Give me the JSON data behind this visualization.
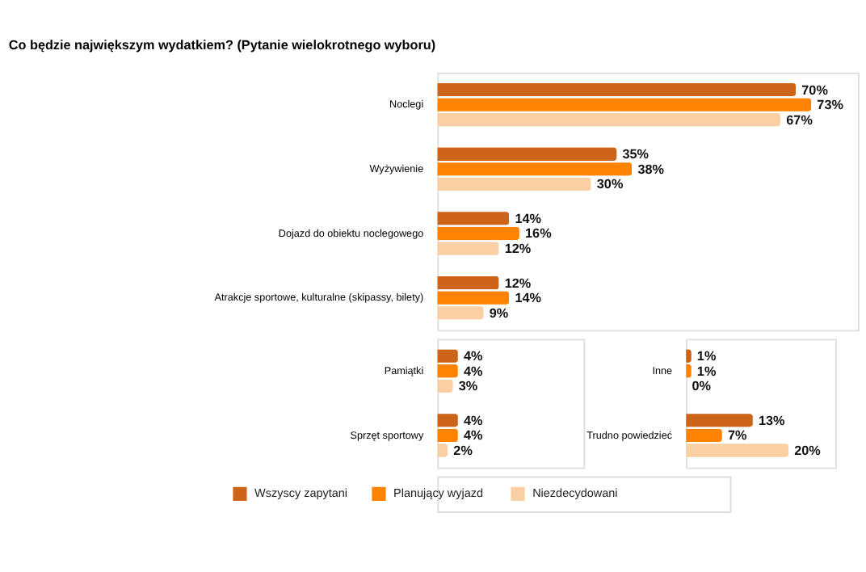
{
  "chart_data": [
    {
      "type": "bar",
      "orientation": "horizontal",
      "title": "Co będzie największym wydatkiem? (Pytanie wielokrotnego wyboru)",
      "categories": [
        "Noclegi",
        "Wyżywienie",
        "Dojazd do obiektu noclegowego",
        "Atrakcje sportowe, kulturalne (skipassy, bilety)"
      ],
      "legend": "bottom",
      "series": [
        {
          "name": "Wszyscy zapytani",
          "color": "#cc6419",
          "values": [
            70,
            35,
            14,
            12
          ],
          "value_labels": [
            "70%",
            "35%",
            "14%",
            "12%"
          ]
        },
        {
          "name": "Planujący wyjazd",
          "color": "#ff8200",
          "values": [
            73,
            38,
            16,
            14
          ],
          "value_labels": [
            "73%",
            "38%",
            "16%",
            "14%"
          ]
        },
        {
          "name": "Niezdecydowani",
          "color": "#fbcfa4",
          "values": [
            67,
            30,
            12,
            9
          ],
          "value_labels": [
            "67%",
            "30%",
            "12%",
            "9%"
          ]
        }
      ]
    },
    {
      "type": "bar",
      "orientation": "horizontal",
      "categories": [
        "Pamiątki",
        "Sprzęt sportowy"
      ],
      "series": [
        {
          "color": "#cc6419",
          "values": [
            4,
            4
          ],
          "value_labels": [
            "4%",
            "4%"
          ]
        },
        {
          "color": "#ff8200",
          "values": [
            4,
            4
          ],
          "value_labels": [
            "4%",
            "4%"
          ]
        },
        {
          "color": "#fbcfa4",
          "values": [
            3,
            2
          ],
          "value_labels": [
            "3%",
            "2%"
          ]
        }
      ]
    },
    {
      "type": "bar",
      "orientation": "horizontal",
      "categories": [
        "Inne",
        "Trudno powiedzieć"
      ],
      "series": [
        {
          "color": "#cc6419",
          "values": [
            1,
            13
          ],
          "value_labels": [
            "1%",
            "13%"
          ]
        },
        {
          "color": "#ff8200",
          "values": [
            1,
            7
          ],
          "value_labels": [
            "1%",
            "7%"
          ]
        },
        {
          "color": "#fbcfa4",
          "values": [
            0,
            20
          ],
          "value_labels": [
            "0%",
            "20%"
          ]
        }
      ]
    }
  ]
}
